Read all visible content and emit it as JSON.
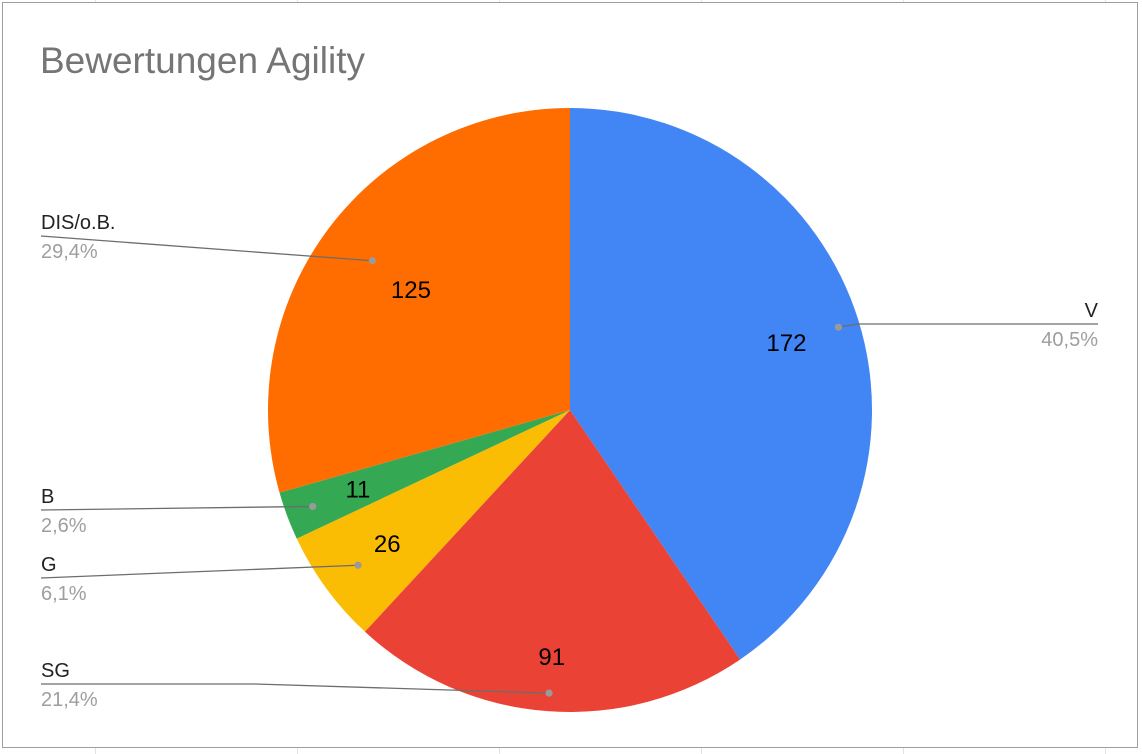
{
  "chart_data": {
    "type": "pie",
    "title": "Bewertungen Agility",
    "slices": [
      {
        "label": "V",
        "value": 172,
        "percent": "40,5%",
        "color": "#4285f4"
      },
      {
        "label": "SG",
        "value": 91,
        "percent": "21,4%",
        "color": "#ea4335"
      },
      {
        "label": "G",
        "value": 26,
        "percent": "6,1%",
        "color": "#fbbc04"
      },
      {
        "label": "B",
        "value": 11,
        "percent": "2,6%",
        "color": "#34a853"
      },
      {
        "label": "DIS/o.B.",
        "value": 125,
        "percent": "29,4%",
        "color": "#ff6d01"
      }
    ],
    "start_angle": "top",
    "direction": "clockwise"
  }
}
